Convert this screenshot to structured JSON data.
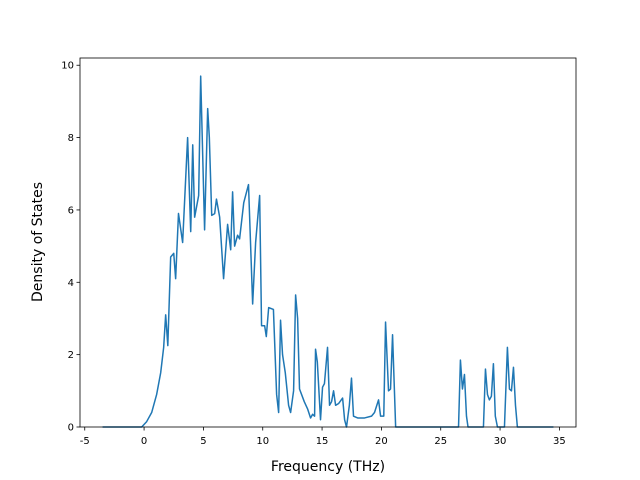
{
  "chart_data": {
    "type": "line",
    "x_label": "Frequency (THz)",
    "y_label": "Density of States",
    "color": "#1f77b4",
    "x": [
      -3.5,
      -0.2,
      0.22,
      0.64,
      1.06,
      1.4,
      1.65,
      1.82,
      2.0,
      2.24,
      2.5,
      2.66,
      2.9,
      3.25,
      3.67,
      3.93,
      4.1,
      4.26,
      4.6,
      4.77,
      5.1,
      5.36,
      5.5,
      5.7,
      5.95,
      6.1,
      6.37,
      6.7,
      7.04,
      7.3,
      7.46,
      7.63,
      7.88,
      8.05,
      8.4,
      8.8,
      9.15,
      9.4,
      9.74,
      9.9,
      10.16,
      10.3,
      10.5,
      10.9,
      11.17,
      11.34,
      11.5,
      11.67,
      11.9,
      12.18,
      12.35,
      12.6,
      12.77,
      12.94,
      13.1,
      13.5,
      13.78,
      14.03,
      14.2,
      14.37,
      14.45,
      14.6,
      14.87,
      15.04,
      15.2,
      15.46,
      15.63,
      15.8,
      15.97,
      16.14,
      16.4,
      16.73,
      16.9,
      17.06,
      17.3,
      17.48,
      17.65,
      18.0,
      18.58,
      19.17,
      19.42,
      19.76,
      19.93,
      20.2,
      20.35,
      20.6,
      20.77,
      20.94,
      21.2,
      26.5,
      26.66,
      26.83,
      27.0,
      27.17,
      27.3,
      28.6,
      28.77,
      28.94,
      29.1,
      29.27,
      29.44,
      29.6,
      29.78,
      30.37,
      30.62,
      30.79,
      30.96,
      31.13,
      31.3,
      31.46,
      34.5
    ],
    "values": [
      0,
      0,
      0.15,
      0.4,
      0.9,
      1.5,
      2.2,
      3.1,
      2.25,
      4.7,
      4.8,
      4.1,
      5.9,
      5.1,
      8.0,
      5.4,
      7.8,
      5.8,
      6.4,
      9.7,
      5.45,
      8.8,
      8.0,
      5.85,
      5.9,
      6.3,
      5.8,
      4.1,
      5.6,
      4.9,
      6.5,
      5.0,
      5.3,
      5.2,
      6.2,
      6.7,
      3.4,
      5.1,
      6.4,
      2.8,
      2.8,
      2.5,
      3.3,
      3.25,
      0.9,
      0.4,
      2.95,
      2.0,
      1.5,
      0.6,
      0.4,
      1.0,
      3.65,
      3.0,
      1.05,
      0.7,
      0.5,
      0.25,
      0.35,
      0.3,
      2.15,
      1.8,
      0.2,
      1.1,
      1.2,
      2.2,
      0.6,
      0.7,
      1.0,
      0.6,
      0.65,
      0.8,
      0.2,
      0,
      0.6,
      1.35,
      0.3,
      0.25,
      0.25,
      0.3,
      0.4,
      0.75,
      0.3,
      0.3,
      2.9,
      1.0,
      1.05,
      2.55,
      0,
      0,
      1.85,
      1.05,
      1.45,
      0.3,
      0,
      0,
      1.6,
      0.9,
      0.75,
      0.85,
      1.75,
      0.3,
      0,
      0,
      2.2,
      1.05,
      1.0,
      1.65,
      0.6,
      0,
      0
    ],
    "xlim": [
      -5.4,
      36.4
    ],
    "ylim": [
      0,
      10.2
    ],
    "xticks": [
      -5,
      0,
      5,
      10,
      15,
      20,
      25,
      30,
      35
    ],
    "yticks": [
      0,
      2,
      4,
      6,
      8,
      10
    ]
  }
}
